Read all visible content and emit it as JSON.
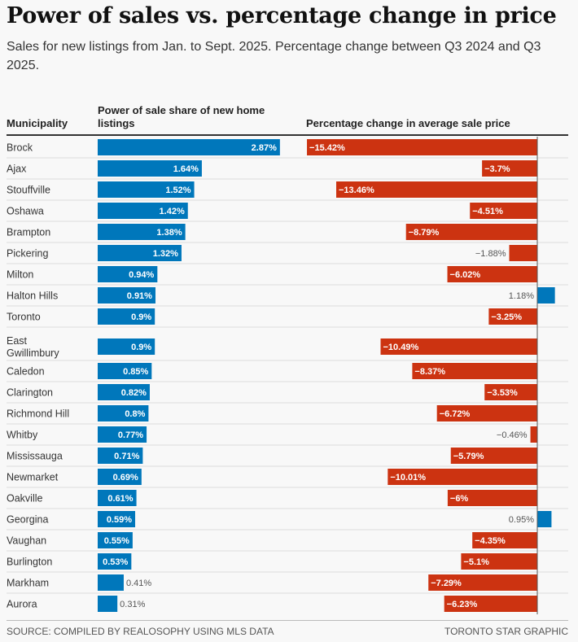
{
  "title": "Power of sales vs. percentage change in price",
  "subtitle": "Sales for new listings from Jan. to Sept. 2025. Percentage change between Q3 2024 and Q3 2025.",
  "footer": {
    "source": "SOURCE: COMPILED BY REALOSOPHY USING MLS DATA",
    "credit": "TORONTO STAR GRAPHIC"
  },
  "colors": {
    "share": "#0077bb",
    "negative": "#cc3311",
    "positive": "#0077bb"
  },
  "chart_data": {
    "type": "bar",
    "columns": [
      "Municipality",
      "Power of sale share of new home listings",
      "Percentage change in average sale price"
    ],
    "categories": [
      "Brock",
      "Ajax",
      "Stouffville",
      "Oshawa",
      "Brampton",
      "Pickering",
      "Milton",
      "Halton Hills",
      "Toronto",
      "East Gwillimbury",
      "Caledon",
      "Clarington",
      "Richmond Hill",
      "Whitby",
      "Mississauga",
      "Newmarket",
      "Oakville",
      "Georgina",
      "Vaughan",
      "Burlington",
      "Markham",
      "Aurora"
    ],
    "series": [
      {
        "name": "Power of sale share of new home listings",
        "unit": "%",
        "values": [
          2.87,
          1.64,
          1.52,
          1.42,
          1.38,
          1.32,
          0.94,
          0.91,
          0.9,
          0.9,
          0.85,
          0.82,
          0.8,
          0.77,
          0.71,
          0.69,
          0.61,
          0.59,
          0.55,
          0.53,
          0.41,
          0.31
        ]
      },
      {
        "name": "Percentage change in average sale price",
        "unit": "%",
        "values": [
          -15.42,
          -3.7,
          -13.46,
          -4.51,
          -8.79,
          -1.88,
          -6.02,
          1.18,
          -3.25,
          -10.49,
          -8.37,
          -3.53,
          -6.72,
          -0.46,
          -5.79,
          -10.01,
          -6,
          0.95,
          -4.35,
          -5.1,
          -7.29,
          -6.23
        ]
      }
    ],
    "labels": {
      "share": [
        "2.87%",
        "1.64%",
        "1.52%",
        "1.42%",
        "1.38%",
        "1.32%",
        "0.94%",
        "0.91%",
        "0.9%",
        "0.9%",
        "0.85%",
        "0.82%",
        "0.8%",
        "0.77%",
        "0.71%",
        "0.69%",
        "0.61%",
        "0.59%",
        "0.55%",
        "0.53%",
        "0.41%",
        "0.31%"
      ],
      "change": [
        "−15.42%",
        "−3.7%",
        "−13.46%",
        "−4.51%",
        "−8.79%",
        "−1.88%",
        "−6.02%",
        "1.18%",
        "−3.25%",
        "−10.49%",
        "−8.37%",
        "−3.53%",
        "−6.72%",
        "−0.46%",
        "−5.79%",
        "−10.01%",
        "−6%",
        "0.95%",
        "−4.35%",
        "−5.1%",
        "−7.29%",
        "−6.23%"
      ]
    }
  }
}
